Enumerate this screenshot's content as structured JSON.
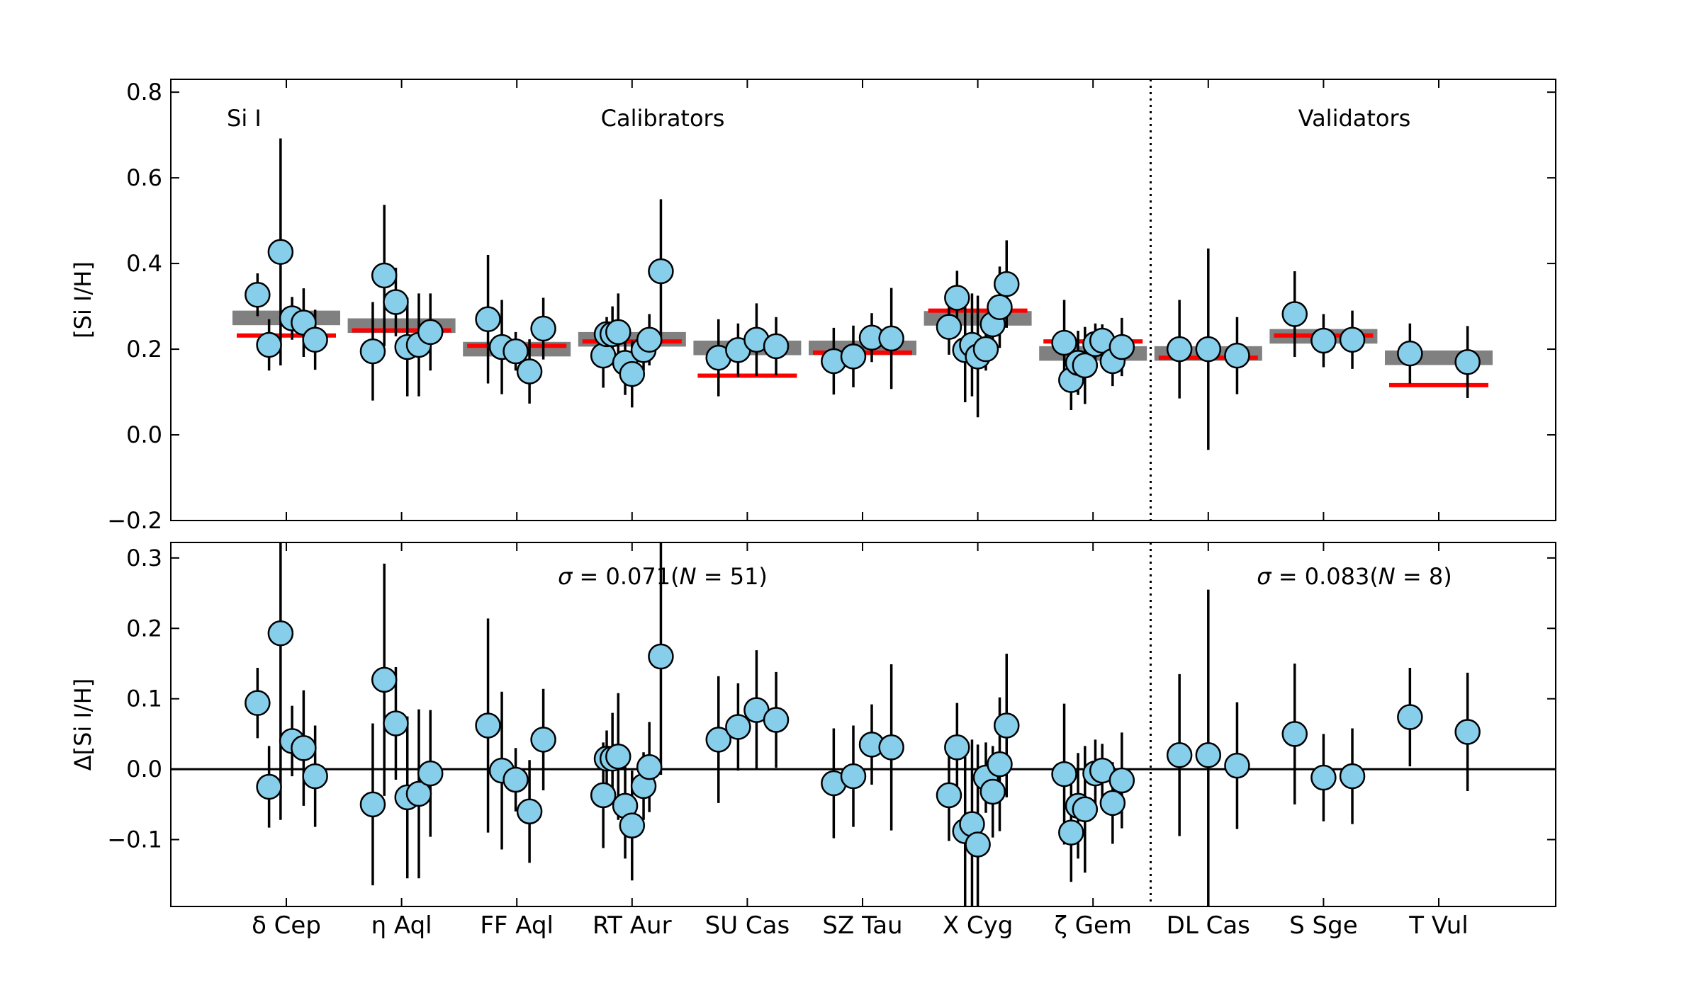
{
  "chart_data": [
    {
      "panel": "top",
      "type": "scatter",
      "ylabel": "[Si I/H]",
      "ylim": [
        -0.2,
        0.83
      ],
      "yticks": [
        -0.2,
        0.0,
        0.2,
        0.4,
        0.6,
        0.8
      ],
      "ytick_labels": [
        "−0.2",
        "0.0",
        "0.2",
        "0.4",
        "0.6",
        "0.8"
      ],
      "annotations": {
        "element": "Si I",
        "calibrators": "Calibrators",
        "validators": "Validators"
      },
      "separator_after_category": 7,
      "categories": [
        "δ Cep",
        "η Aql",
        "FF Aql",
        "RT Aur",
        "SU Cas",
        "SZ Tau",
        "X Cyg",
        "ζ Gem",
        "DL Cas",
        "S Sge",
        "T Vul"
      ],
      "gray_band": [
        {
          "center": 0.273,
          "half": 0.017
        },
        {
          "center": 0.255,
          "half": 0.017
        },
        {
          "center": 0.2,
          "half": 0.017
        },
        {
          "center": 0.223,
          "half": 0.017
        },
        {
          "center": 0.203,
          "half": 0.017
        },
        {
          "center": 0.203,
          "half": 0.017
        },
        {
          "center": 0.272,
          "half": 0.017
        },
        {
          "center": 0.19,
          "half": 0.017
        },
        {
          "center": 0.19,
          "half": 0.017
        },
        {
          "center": 0.23,
          "half": 0.017
        },
        {
          "center": 0.18,
          "half": 0.017
        }
      ],
      "red_line": [
        0.232,
        0.244,
        0.208,
        0.218,
        0.138,
        0.192,
        0.29,
        0.218,
        0.18,
        0.232,
        0.116
      ],
      "points": [
        [
          {
            "dx": -0.25,
            "y": 0.327,
            "err": 0.05
          },
          {
            "dx": -0.15,
            "y": 0.21,
            "err": 0.06
          },
          {
            "dx": -0.05,
            "y": 0.427,
            "err": 0.265
          },
          {
            "dx": 0.05,
            "y": 0.272,
            "err": 0.05
          },
          {
            "dx": 0.15,
            "y": 0.262,
            "err": 0.08
          },
          {
            "dx": 0.25,
            "y": 0.222,
            "err": 0.07
          }
        ],
        [
          {
            "dx": -0.25,
            "y": 0.195,
            "err": 0.115
          },
          {
            "dx": -0.15,
            "y": 0.372,
            "err": 0.165
          },
          {
            "dx": -0.05,
            "y": 0.31,
            "err": 0.08
          },
          {
            "dx": 0.05,
            "y": 0.205,
            "err": 0.115
          },
          {
            "dx": 0.15,
            "y": 0.21,
            "err": 0.12
          },
          {
            "dx": 0.25,
            "y": 0.24,
            "err": 0.09
          }
        ],
        [
          {
            "dx": -0.25,
            "y": 0.27,
            "err": 0.15
          },
          {
            "dx": -0.13,
            "y": 0.205,
            "err": 0.11
          },
          {
            "dx": -0.01,
            "y": 0.195,
            "err": 0.045
          },
          {
            "dx": 0.11,
            "y": 0.148,
            "err": 0.075
          },
          {
            "dx": 0.23,
            "y": 0.248,
            "err": 0.072
          }
        ],
        [
          {
            "dx": -0.25,
            "y": 0.185,
            "err": 0.075
          },
          {
            "dx": -0.22,
            "y": 0.235,
            "err": 0.04
          },
          {
            "dx": -0.17,
            "y": 0.235,
            "err": 0.065
          },
          {
            "dx": -0.12,
            "y": 0.24,
            "err": 0.09
          },
          {
            "dx": -0.06,
            "y": 0.168,
            "err": 0.075
          },
          {
            "dx": 0.0,
            "y": 0.142,
            "err": 0.078
          },
          {
            "dx": 0.1,
            "y": 0.198,
            "err": 0.048
          },
          {
            "dx": 0.15,
            "y": 0.222,
            "err": 0.06
          },
          {
            "dx": 0.25,
            "y": 0.382,
            "err": 0.168
          }
        ],
        [
          {
            "dx": -0.25,
            "y": 0.18,
            "err": 0.09
          },
          {
            "dx": -0.08,
            "y": 0.198,
            "err": 0.062
          },
          {
            "dx": 0.08,
            "y": 0.222,
            "err": 0.085
          },
          {
            "dx": 0.25,
            "y": 0.207,
            "err": 0.068
          }
        ],
        [
          {
            "dx": -0.25,
            "y": 0.172,
            "err": 0.078
          },
          {
            "dx": -0.08,
            "y": 0.183,
            "err": 0.072
          },
          {
            "dx": 0.08,
            "y": 0.227,
            "err": 0.057
          },
          {
            "dx": 0.25,
            "y": 0.225,
            "err": 0.118
          }
        ],
        [
          {
            "dx": -0.25,
            "y": 0.252,
            "err": 0.065
          },
          {
            "dx": -0.18,
            "y": 0.32,
            "err": 0.063
          },
          {
            "dx": -0.11,
            "y": 0.198,
            "err": 0.122
          },
          {
            "dx": -0.05,
            "y": 0.21,
            "err": 0.12
          },
          {
            "dx": 0.0,
            "y": 0.183,
            "err": 0.142
          },
          {
            "dx": 0.07,
            "y": 0.2,
            "err": 0.05
          },
          {
            "dx": 0.13,
            "y": 0.258,
            "err": 0.065
          },
          {
            "dx": 0.19,
            "y": 0.298,
            "err": 0.095
          },
          {
            "dx": 0.25,
            "y": 0.352,
            "err": 0.102
          }
        ],
        [
          {
            "dx": -0.25,
            "y": 0.215,
            "err": 0.1
          },
          {
            "dx": -0.19,
            "y": 0.128,
            "err": 0.07
          },
          {
            "dx": -0.13,
            "y": 0.168,
            "err": 0.075
          },
          {
            "dx": -0.07,
            "y": 0.162,
            "err": 0.09
          },
          {
            "dx": 0.02,
            "y": 0.212,
            "err": 0.048
          },
          {
            "dx": 0.08,
            "y": 0.22,
            "err": 0.038
          },
          {
            "dx": 0.17,
            "y": 0.172,
            "err": 0.058
          },
          {
            "dx": 0.25,
            "y": 0.205,
            "err": 0.068
          }
        ],
        [
          {
            "dx": -0.25,
            "y": 0.2,
            "err": 0.115
          },
          {
            "dx": 0.0,
            "y": 0.2,
            "err": 0.235
          },
          {
            "dx": 0.25,
            "y": 0.185,
            "err": 0.09
          }
        ],
        [
          {
            "dx": -0.25,
            "y": 0.282,
            "err": 0.1
          },
          {
            "dx": 0.0,
            "y": 0.22,
            "err": 0.062
          },
          {
            "dx": 0.25,
            "y": 0.222,
            "err": 0.068
          }
        ],
        [
          {
            "dx": -0.25,
            "y": 0.19,
            "err": 0.07
          },
          {
            "dx": 0.25,
            "y": 0.17,
            "err": 0.084
          }
        ]
      ]
    },
    {
      "panel": "bottom",
      "type": "scatter",
      "ylabel": "Δ[Si I/H]",
      "ylim": [
        -0.195,
        0.322
      ],
      "yticks": [
        -0.1,
        0.0,
        0.1,
        0.2,
        0.3
      ],
      "ytick_labels": [
        "−0.1",
        "0.0",
        "0.1",
        "0.2",
        "0.3"
      ],
      "reference_line": 0.0,
      "annotations": {
        "sigma_calibrators": {
          "sigma": "σ",
          "text": " = 0.071(",
          "n": "N",
          "tail": " = 51)"
        },
        "sigma_validators": {
          "sigma": "σ",
          "text": " = 0.083(",
          "n": "N",
          "tail": " = 8)"
        }
      },
      "separator_after_category": 7,
      "categories": [
        "δ Cep",
        "η Aql",
        "FF Aql",
        "RT Aur",
        "SU Cas",
        "SZ Tau",
        "X Cyg",
        "ζ Gem",
        "DL Cas",
        "S Sge",
        "T Vul"
      ],
      "points": [
        [
          {
            "dx": -0.25,
            "y": 0.094,
            "err": 0.05
          },
          {
            "dx": -0.15,
            "y": -0.025,
            "err": 0.058
          },
          {
            "dx": -0.05,
            "y": 0.193,
            "err": 0.265
          },
          {
            "dx": 0.05,
            "y": 0.04,
            "err": 0.05
          },
          {
            "dx": 0.15,
            "y": 0.03,
            "err": 0.082
          },
          {
            "dx": 0.25,
            "y": -0.01,
            "err": 0.072
          }
        ],
        [
          {
            "dx": -0.25,
            "y": -0.05,
            "err": 0.115
          },
          {
            "dx": -0.15,
            "y": 0.127,
            "err": 0.165
          },
          {
            "dx": -0.05,
            "y": 0.065,
            "err": 0.08
          },
          {
            "dx": 0.05,
            "y": -0.04,
            "err": 0.115
          },
          {
            "dx": 0.15,
            "y": -0.035,
            "err": 0.12
          },
          {
            "dx": 0.25,
            "y": -0.006,
            "err": 0.09
          }
        ],
        [
          {
            "dx": -0.25,
            "y": 0.062,
            "err": 0.152
          },
          {
            "dx": -0.13,
            "y": -0.002,
            "err": 0.112
          },
          {
            "dx": -0.01,
            "y": -0.015,
            "err": 0.045
          },
          {
            "dx": 0.11,
            "y": -0.06,
            "err": 0.073
          },
          {
            "dx": 0.23,
            "y": 0.042,
            "err": 0.072
          }
        ],
        [
          {
            "dx": -0.25,
            "y": -0.037,
            "err": 0.075
          },
          {
            "dx": -0.22,
            "y": 0.015,
            "err": 0.04
          },
          {
            "dx": -0.17,
            "y": 0.015,
            "err": 0.065
          },
          {
            "dx": -0.12,
            "y": 0.018,
            "err": 0.09
          },
          {
            "dx": -0.06,
            "y": -0.052,
            "err": 0.075
          },
          {
            "dx": 0.0,
            "y": -0.08,
            "err": 0.078
          },
          {
            "dx": 0.1,
            "y": -0.024,
            "err": 0.048
          },
          {
            "dx": 0.15,
            "y": 0.003,
            "err": 0.064
          },
          {
            "dx": 0.25,
            "y": 0.16,
            "err": 0.168
          }
        ],
        [
          {
            "dx": -0.25,
            "y": 0.042,
            "err": 0.09
          },
          {
            "dx": -0.08,
            "y": 0.06,
            "err": 0.062
          },
          {
            "dx": 0.08,
            "y": 0.084,
            "err": 0.085
          },
          {
            "dx": 0.25,
            "y": 0.07,
            "err": 0.068
          }
        ],
        [
          {
            "dx": -0.25,
            "y": -0.02,
            "err": 0.078
          },
          {
            "dx": -0.08,
            "y": -0.01,
            "err": 0.072
          },
          {
            "dx": 0.08,
            "y": 0.035,
            "err": 0.057
          },
          {
            "dx": 0.25,
            "y": 0.031,
            "err": 0.118
          }
        ],
        [
          {
            "dx": -0.25,
            "y": -0.037,
            "err": 0.065
          },
          {
            "dx": -0.18,
            "y": 0.031,
            "err": 0.063
          },
          {
            "dx": -0.11,
            "y": -0.088,
            "err": 0.122
          },
          {
            "dx": -0.05,
            "y": -0.078,
            "err": 0.12
          },
          {
            "dx": 0.0,
            "y": -0.107,
            "err": 0.142
          },
          {
            "dx": 0.07,
            "y": -0.012,
            "err": 0.05
          },
          {
            "dx": 0.13,
            "y": -0.032,
            "err": 0.065
          },
          {
            "dx": 0.19,
            "y": 0.007,
            "err": 0.095
          },
          {
            "dx": 0.25,
            "y": 0.062,
            "err": 0.102
          }
        ],
        [
          {
            "dx": -0.25,
            "y": -0.007,
            "err": 0.1
          },
          {
            "dx": -0.19,
            "y": -0.09,
            "err": 0.07
          },
          {
            "dx": -0.13,
            "y": -0.052,
            "err": 0.075
          },
          {
            "dx": -0.07,
            "y": -0.057,
            "err": 0.09
          },
          {
            "dx": 0.02,
            "y": -0.006,
            "err": 0.048
          },
          {
            "dx": 0.08,
            "y": -0.002,
            "err": 0.038
          },
          {
            "dx": 0.17,
            "y": -0.048,
            "err": 0.058
          },
          {
            "dx": 0.25,
            "y": -0.016,
            "err": 0.068
          }
        ],
        [
          {
            "dx": -0.25,
            "y": 0.02,
            "err": 0.115
          },
          {
            "dx": 0.0,
            "y": 0.02,
            "err": 0.235
          },
          {
            "dx": 0.25,
            "y": 0.005,
            "err": 0.09
          }
        ],
        [
          {
            "dx": -0.25,
            "y": 0.05,
            "err": 0.1
          },
          {
            "dx": 0.0,
            "y": -0.012,
            "err": 0.062
          },
          {
            "dx": 0.25,
            "y": -0.01,
            "err": 0.068
          }
        ],
        [
          {
            "dx": -0.25,
            "y": 0.074,
            "err": 0.07
          },
          {
            "dx": 0.25,
            "y": 0.053,
            "err": 0.084
          }
        ]
      ]
    }
  ],
  "colors": {
    "point_fill": "#87ceeb",
    "point_edge": "#000000",
    "errorbar": "#000000",
    "band": "#808080",
    "median_line": "#ff0000",
    "axis": "#000000"
  }
}
